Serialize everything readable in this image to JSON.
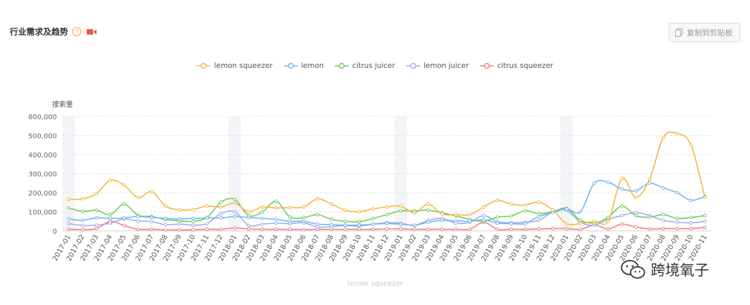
{
  "header": {
    "title": "行业需求及趋势",
    "help": "?",
    "copy_label": "复制到剪贴板"
  },
  "bottom_label": "lemon squeezer",
  "watermark": "跨境氧子",
  "chart_data": {
    "type": "line",
    "ylabel": "搜索量",
    "ylim": [
      0,
      600000
    ],
    "yticks": [
      "600,000",
      "500,000",
      "400,000",
      "300,000",
      "200,000",
      "100,000",
      "0"
    ],
    "ytick_values": [
      600000,
      500000,
      400000,
      300000,
      200000,
      100000,
      0
    ],
    "grid": true,
    "legend_position": "top-center",
    "categories": [
      "2017-01",
      "2017-02",
      "2017-03",
      "2017-04",
      "2017-05",
      "2017-06",
      "2017-07",
      "2017-08",
      "2017-09",
      "2017-10",
      "2017-11",
      "2017-12",
      "2018-01",
      "2018-02",
      "2018-03",
      "2018-04",
      "2018-05",
      "2018-06",
      "2018-07",
      "2018-08",
      "2018-09",
      "2018-10",
      "2018-11",
      "2018-12",
      "2019-01",
      "2019-02",
      "2019-03",
      "2019-04",
      "2019-05",
      "2019-06",
      "2019-07",
      "2019-08",
      "2019-09",
      "2019-10",
      "2019-11",
      "2019-12",
      "2020-01",
      "2020-02",
      "2020-03",
      "2020-04",
      "2020-05",
      "2020-06",
      "2020-07",
      "2020-08",
      "2020-09",
      "2020-10",
      "2020-11"
    ],
    "highlight_months": [
      "2017-01",
      "2018-01",
      "2019-01",
      "2020-01"
    ],
    "highlight_color": "#f3f4f8",
    "series": [
      {
        "name": "lemon squeezer",
        "color": "#f5b53f",
        "values": [
          165000,
          168000,
          195000,
          265000,
          240000,
          175000,
          205000,
          130000,
          110000,
          112000,
          130000,
          125000,
          145000,
          100000,
          125000,
          120000,
          122000,
          125000,
          168000,
          140000,
          108000,
          100000,
          115000,
          125000,
          130000,
          95000,
          140000,
          88000,
          85000,
          85000,
          125000,
          160000,
          140000,
          135000,
          150000,
          110000,
          38000,
          38000,
          50000,
          50000,
          275000,
          175000,
          270000,
          490000,
          510000,
          450000,
          175000
        ]
      },
      {
        "name": "lemon",
        "color": "#6cb8f0",
        "values": [
          62000,
          55000,
          68000,
          65000,
          68000,
          75000,
          70000,
          65000,
          62000,
          65000,
          68000,
          68000,
          75000,
          70000,
          65000,
          60000,
          50000,
          50000,
          35000,
          32000,
          30000,
          30000,
          35000,
          38000,
          35000,
          30000,
          45000,
          55000,
          52000,
          50000,
          58000,
          40000,
          38000,
          38000,
          75000,
          95000,
          115000,
          100000,
          250000,
          255000,
          220000,
          210000,
          250000,
          225000,
          200000,
          160000,
          180000
        ]
      },
      {
        "name": "citrus juicer",
        "color": "#6ccd5c",
        "values": [
          120000,
          102000,
          108000,
          85000,
          140000,
          82000,
          75000,
          60000,
          52000,
          50000,
          70000,
          150000,
          165000,
          80000,
          100000,
          155000,
          72000,
          70000,
          85000,
          60000,
          50000,
          48000,
          65000,
          85000,
          105000,
          105000,
          108000,
          95000,
          78000,
          60000,
          50000,
          72000,
          78000,
          105000,
          90000,
          100000,
          118000,
          55000,
          42000,
          70000,
          130000,
          80000,
          72000,
          85000,
          65000,
          70000,
          80000
        ]
      },
      {
        "name": "lemon juicer",
        "color": "#a4a9ea",
        "values": [
          38000,
          28000,
          30000,
          40000,
          62000,
          52000,
          48000,
          32000,
          35000,
          30000,
          38000,
          90000,
          100000,
          28000,
          35000,
          40000,
          38000,
          42000,
          20000,
          22000,
          28000,
          25000,
          35000,
          42000,
          40000,
          28000,
          55000,
          65000,
          40000,
          45000,
          80000,
          48000,
          42000,
          45000,
          55000,
          100000,
          108000,
          45000,
          30000,
          60000,
          80000,
          95000,
          80000,
          55000,
          45000,
          42000,
          50000
        ]
      },
      {
        "name": "citrus squeezer",
        "color": "#f07f80",
        "values": [
          8000,
          6000,
          12000,
          50000,
          28000,
          8000,
          8000,
          5000,
          5000,
          5000,
          8000,
          8000,
          15000,
          10000,
          8000,
          8000,
          8000,
          6000,
          8000,
          8000,
          8000,
          8000,
          8000,
          10000,
          10000,
          8000,
          8000,
          8000,
          8000,
          8000,
          45000,
          8000,
          8000,
          8000,
          10000,
          12000,
          12000,
          8000,
          30000,
          10000,
          35000,
          20000,
          10000,
          12000,
          12000,
          12000,
          18000
        ]
      }
    ]
  }
}
